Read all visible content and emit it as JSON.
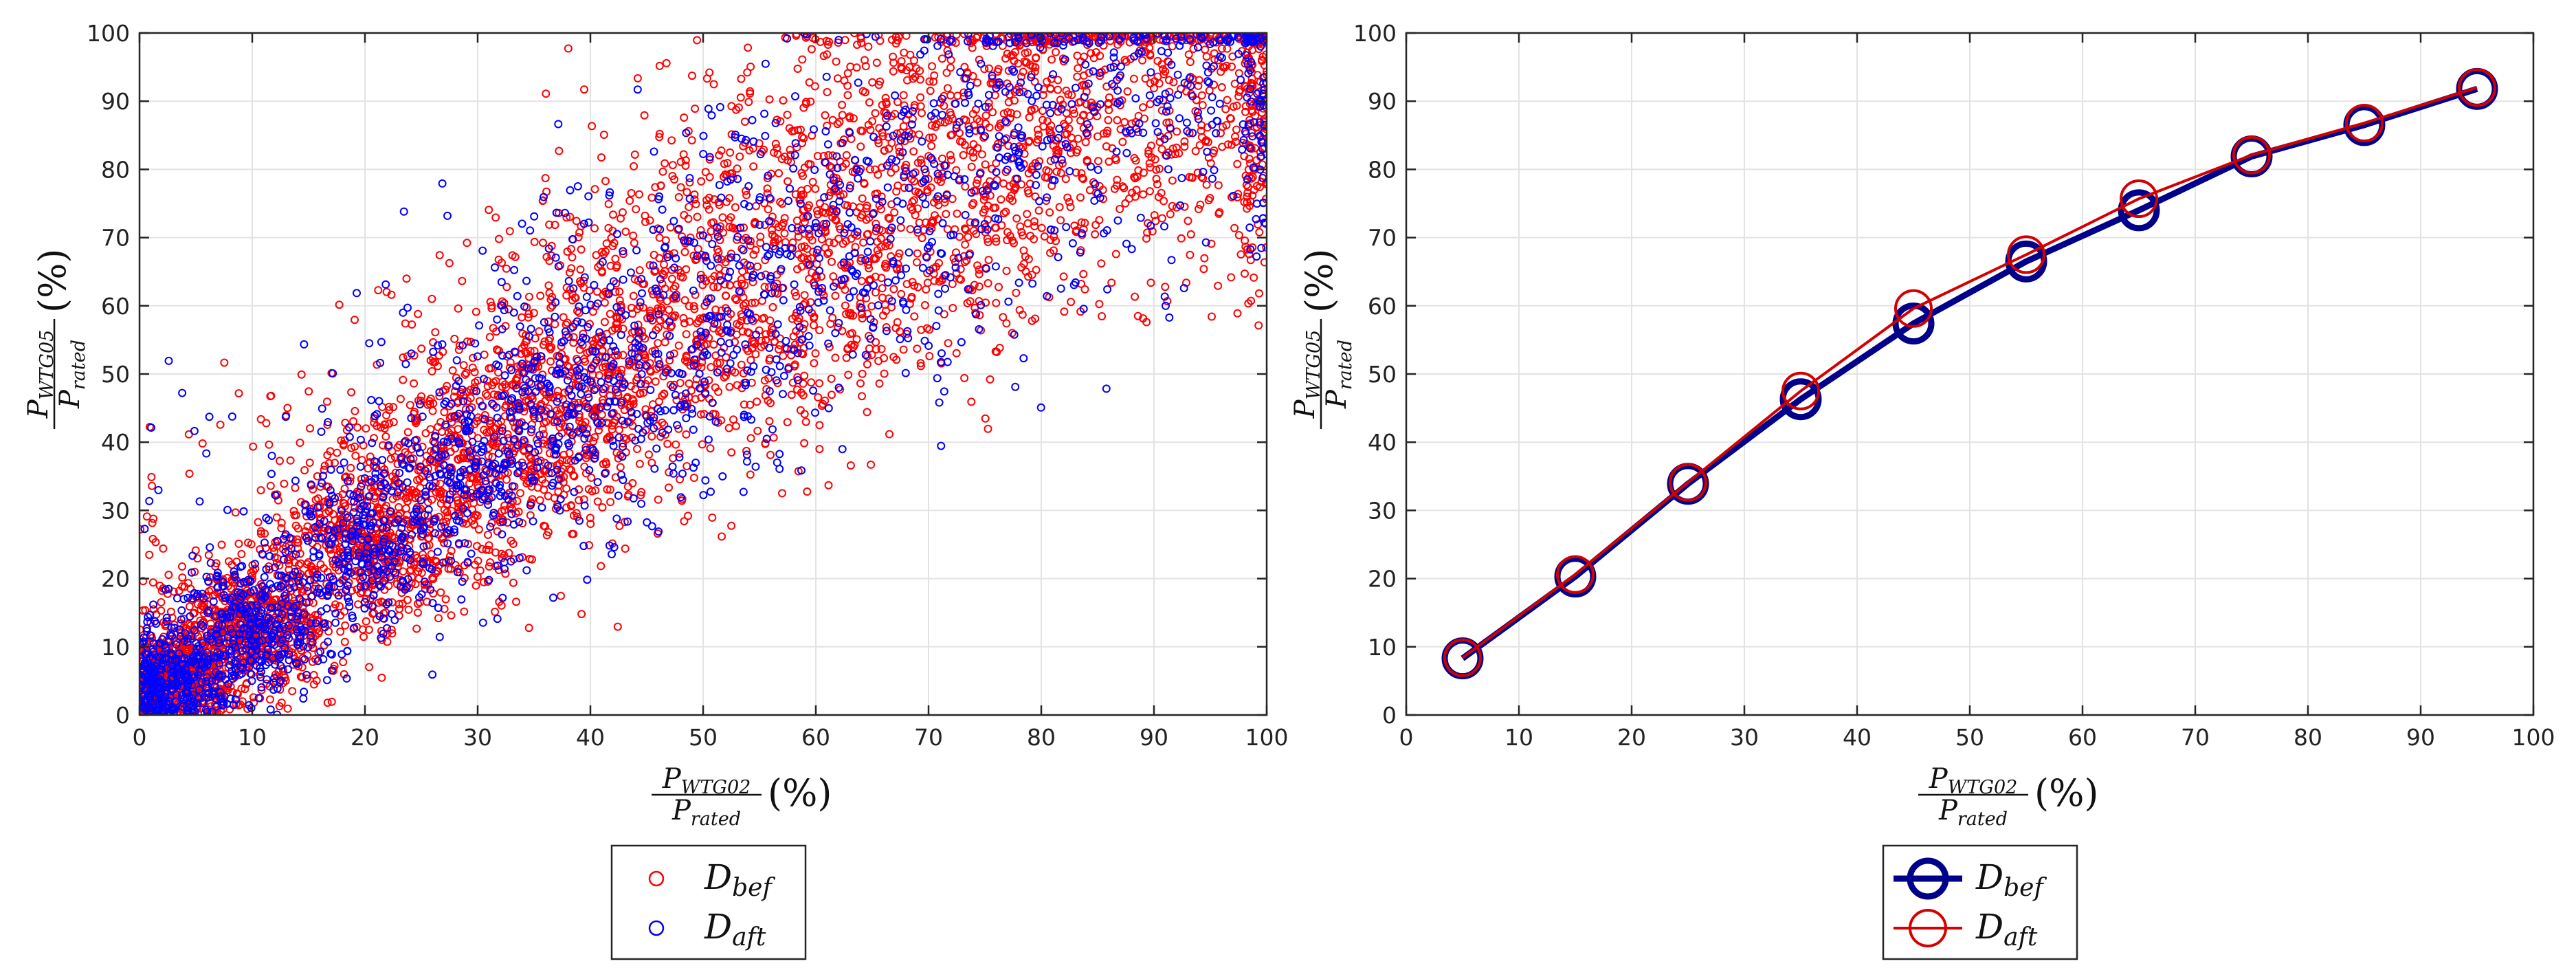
{
  "chart_data": [
    {
      "type": "scatter",
      "title": "",
      "xlabel": {
        "num_base": "P",
        "num_sub": "WTG02",
        "den_base": "P",
        "den_sub": "rated",
        "unit": "(%)"
      },
      "ylabel": {
        "num_base": "P",
        "num_sub": "WTG05",
        "den_base": "P",
        "den_sub": "rated",
        "unit": "(%)"
      },
      "xlim": [
        0,
        100
      ],
      "ylim": [
        0,
        100
      ],
      "xticks": [
        "0",
        "10",
        "20",
        "30",
        "40",
        "50",
        "60",
        "70",
        "80",
        "90",
        "100"
      ],
      "yticks": [
        "0",
        "10",
        "20",
        "30",
        "40",
        "50",
        "60",
        "70",
        "80",
        "90",
        "100"
      ],
      "grid": true,
      "legend_position": "below",
      "series": [
        {
          "name": "bef",
          "label_base": "D",
          "label_sub": "bef",
          "color": "#ff0000",
          "marker": "circle-open",
          "clusters": [
            {
              "x": 3,
              "y": 5,
              "count": 600
            },
            {
              "x": 10,
              "y": 13,
              "count": 650
            },
            {
              "x": 20,
              "y": 25,
              "count": 600
            },
            {
              "x": 30,
              "y": 37,
              "count": 550
            },
            {
              "x": 40,
              "y": 48,
              "count": 500
            },
            {
              "x": 50,
              "y": 60,
              "count": 450
            },
            {
              "x": 60,
              "y": 68,
              "count": 420
            },
            {
              "x": 70,
              "y": 77,
              "count": 400
            },
            {
              "x": 80,
              "y": 84,
              "count": 380
            },
            {
              "x": 90,
              "y": 90,
              "count": 360
            },
            {
              "x": 96,
              "y": 96,
              "count": 200
            }
          ]
        },
        {
          "name": "aft",
          "label_base": "D",
          "label_sub": "aft",
          "color": "#0000ff",
          "marker": "circle-open",
          "clusters": [
            {
              "x": 3,
              "y": 5,
              "count": 350
            },
            {
              "x": 10,
              "y": 13,
              "count": 330
            },
            {
              "x": 20,
              "y": 25,
              "count": 300
            },
            {
              "x": 30,
              "y": 37,
              "count": 260
            },
            {
              "x": 40,
              "y": 48,
              "count": 230
            },
            {
              "x": 50,
              "y": 58,
              "count": 180
            },
            {
              "x": 60,
              "y": 67,
              "count": 150
            },
            {
              "x": 70,
              "y": 76,
              "count": 140
            },
            {
              "x": 80,
              "y": 84,
              "count": 130
            },
            {
              "x": 90,
              "y": 91,
              "count": 140
            },
            {
              "x": 96,
              "y": 97,
              "count": 90
            }
          ]
        }
      ]
    },
    {
      "type": "line",
      "title": "",
      "xlabel": {
        "num_base": "P",
        "num_sub": "WTG02",
        "den_base": "P",
        "den_sub": "rated",
        "unit": "(%)"
      },
      "ylabel": {
        "num_base": "P",
        "num_sub": "WTG05",
        "den_base": "P",
        "den_sub": "rated",
        "unit": "(%)"
      },
      "xlim": [
        0,
        100
      ],
      "ylim": [
        0,
        100
      ],
      "xticks": [
        "0",
        "10",
        "20",
        "30",
        "40",
        "50",
        "60",
        "70",
        "80",
        "90",
        "100"
      ],
      "yticks": [
        "0",
        "10",
        "20",
        "30",
        "40",
        "50",
        "60",
        "70",
        "80",
        "90",
        "100"
      ],
      "grid": true,
      "legend_position": "below",
      "x": [
        5,
        15,
        25,
        35,
        45,
        55,
        65,
        75,
        85,
        95
      ],
      "series": [
        {
          "name": "bef",
          "label_base": "D",
          "label_sub": "bef",
          "color": "#00008b",
          "marker": "circle-open",
          "values": [
            8.3,
            20.3,
            33.9,
            46.3,
            57.4,
            66.5,
            74.0,
            81.9,
            86.5,
            91.8
          ]
        },
        {
          "name": "aft",
          "label_base": "D",
          "label_sub": "aft",
          "color": "#d40000",
          "marker": "circle-open",
          "values": [
            8.4,
            20.6,
            34.1,
            47.5,
            59.6,
            67.5,
            75.7,
            82.1,
            86.8,
            92.0
          ]
        }
      ]
    }
  ]
}
